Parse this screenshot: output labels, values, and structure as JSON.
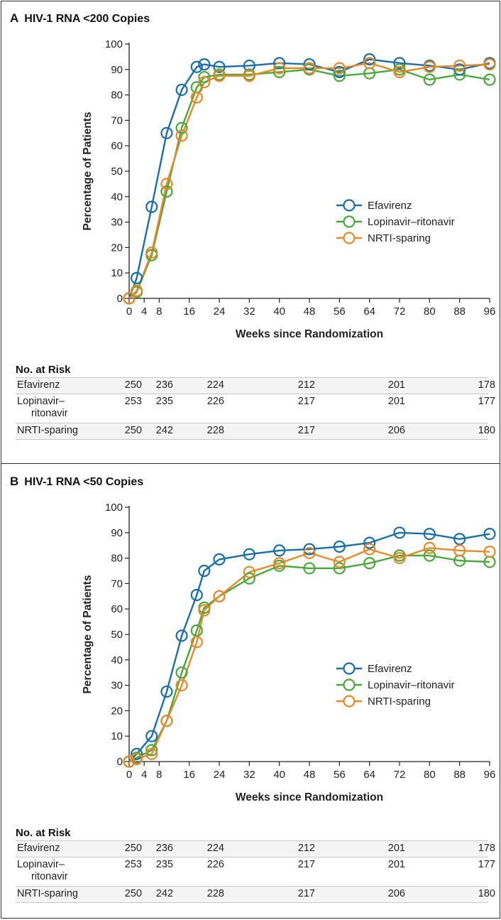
{
  "chart_data": [
    {
      "type": "line",
      "panel_letter": "A",
      "title": "HIV-1 RNA <200 Copies",
      "xlabel": "Weeks since Randomization",
      "ylabel": "Percentage of Patients",
      "xlim": [
        0,
        96
      ],
      "ylim": [
        0,
        100
      ],
      "xticks": [
        0,
        4,
        8,
        16,
        24,
        32,
        40,
        48,
        56,
        64,
        72,
        80,
        88,
        96
      ],
      "yticks": [
        0,
        10,
        20,
        30,
        40,
        50,
        60,
        70,
        80,
        90,
        100
      ],
      "grid": false,
      "legend_position": "lower-right",
      "series": [
        {
          "name": "Efavirenz",
          "color": "#1a6fa8",
          "x": [
            0,
            2,
            6,
            10,
            14,
            18,
            20,
            24,
            32,
            40,
            48,
            56,
            64,
            72,
            80,
            88,
            96
          ],
          "y": [
            0,
            8,
            36,
            65,
            82,
            91,
            92,
            91,
            91.5,
            92.5,
            92,
            89,
            94,
            92.5,
            91.5,
            90,
            92.5
          ]
        },
        {
          "name": "Lopinavir–ritonavir",
          "color": "#4aa83c",
          "x": [
            0,
            2,
            6,
            10,
            14,
            18,
            20,
            24,
            32,
            40,
            48,
            56,
            64,
            72,
            80,
            88,
            96
          ],
          "y": [
            0,
            2.5,
            17,
            42,
            67,
            83,
            87,
            88,
            88,
            89,
            90,
            87.5,
            88.5,
            90,
            86,
            88,
            86
          ]
        },
        {
          "name": "NRTI-sparing",
          "color": "#e58a2b",
          "x": [
            0,
            2,
            6,
            10,
            14,
            18,
            20,
            24,
            32,
            40,
            48,
            56,
            64,
            72,
            80,
            88,
            96
          ],
          "y": [
            0,
            3,
            18,
            45,
            64,
            79,
            85,
            87.5,
            87.5,
            90.5,
            90.5,
            90.5,
            92.5,
            89,
            91,
            91.5,
            92
          ]
        }
      ],
      "risk": {
        "heading": "No. at Risk",
        "weeks": [
          0,
          8,
          24,
          48,
          72,
          96
        ],
        "rows": [
          {
            "name": "Efavirenz",
            "name_cont": "",
            "values": [
              "250",
              "236",
              "224",
              "212",
              "201",
              "178"
            ]
          },
          {
            "name": "Lopinavir–",
            "name_cont": "ritonavir",
            "values": [
              "253",
              "235",
              "226",
              "217",
              "201",
              "177"
            ]
          },
          {
            "name": "NRTI-sparing",
            "name_cont": "",
            "values": [
              "250",
              "242",
              "228",
              "217",
              "206",
              "180"
            ]
          }
        ]
      }
    },
    {
      "type": "line",
      "panel_letter": "B",
      "title": "HIV-1 RNA <50 Copies",
      "xlabel": "Weeks since Randomization",
      "ylabel": "Percentage of Patients",
      "xlim": [
        0,
        96
      ],
      "ylim": [
        0,
        100
      ],
      "xticks": [
        0,
        4,
        8,
        16,
        24,
        32,
        40,
        48,
        56,
        64,
        72,
        80,
        88,
        96
      ],
      "yticks": [
        0,
        10,
        20,
        30,
        40,
        50,
        60,
        70,
        80,
        90,
        100
      ],
      "grid": false,
      "legend_position": "lower-right",
      "series": [
        {
          "name": "Efavirenz",
          "color": "#1a6fa8",
          "x": [
            0,
            2,
            6,
            10,
            14,
            18,
            20,
            24,
            32,
            40,
            48,
            56,
            64,
            72,
            80,
            88,
            96
          ],
          "y": [
            0,
            3,
            10,
            27.5,
            49.5,
            65.5,
            75,
            79.5,
            81.5,
            83,
            83.5,
            84.5,
            86,
            90,
            89.5,
            87.5,
            89.5
          ]
        },
        {
          "name": "Lopinavir–ritonavir",
          "color": "#4aa83c",
          "x": [
            0,
            2,
            6,
            10,
            14,
            18,
            20,
            24,
            32,
            40,
            48,
            56,
            64,
            72,
            80,
            88,
            96
          ],
          "y": [
            0,
            1.5,
            4.5,
            16,
            35,
            51.5,
            60.5,
            65,
            72,
            77,
            76,
            76,
            78,
            81,
            81,
            79,
            78.5
          ]
        },
        {
          "name": "NRTI-sparing",
          "color": "#e58a2b",
          "x": [
            0,
            2,
            6,
            10,
            14,
            18,
            20,
            24,
            32,
            40,
            48,
            56,
            64,
            72,
            80,
            88,
            96
          ],
          "y": [
            0,
            1,
            3,
            16,
            30,
            47,
            59.5,
            65,
            74.5,
            78,
            82,
            78.5,
            83.5,
            80,
            84,
            83,
            82.5
          ]
        }
      ],
      "risk": {
        "heading": "No. at Risk",
        "weeks": [
          0,
          8,
          24,
          48,
          72,
          96
        ],
        "rows": [
          {
            "name": "Efavirenz",
            "name_cont": "",
            "values": [
              "250",
              "236",
              "224",
              "212",
              "201",
              "178"
            ]
          },
          {
            "name": "Lopinavir–",
            "name_cont": "ritonavir",
            "values": [
              "253",
              "235",
              "226",
              "217",
              "201",
              "177"
            ]
          },
          {
            "name": "NRTI-sparing",
            "name_cont": "",
            "values": [
              "250",
              "242",
              "228",
              "217",
              "206",
              "180"
            ]
          }
        ]
      }
    }
  ]
}
